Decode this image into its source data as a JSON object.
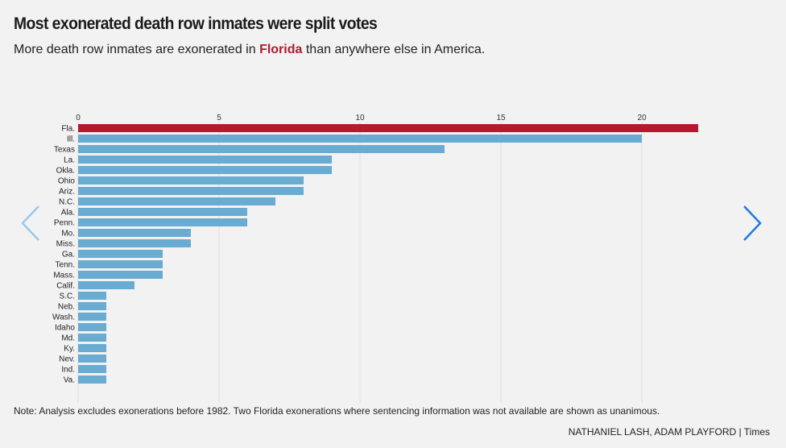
{
  "header": {
    "title": "Most exonerated death row inmates were split votes",
    "subtitle_before": "More death row inmates are exonerated in ",
    "subtitle_highlight": "Florida",
    "subtitle_after": " than anywhere else in America."
  },
  "footer": {
    "note": "Note: Analysis excludes exonerations before 1982. Two Florida exonerations where sentencing information was not available are shown as unanimous.",
    "credit": "NATHANIEL LASH, ADAM PLAYFORD | Times"
  },
  "navigation": {
    "prev_icon": "chevron-left-icon",
    "next_icon": "chevron-right-icon"
  },
  "colors": {
    "highlight": "#b5192f",
    "bar": "#6aabd2",
    "grid": "#dddddd",
    "prev_arrow": "#9cc7ee",
    "next_arrow": "#1f7ae0"
  },
  "chart_data": {
    "type": "bar",
    "orientation": "horizontal",
    "categories": [
      "Fla.",
      "Ill.",
      "Texas",
      "La.",
      "Okla.",
      "Ohio",
      "Ariz.",
      "N.C.",
      "Ala.",
      "Penn.",
      "Mo.",
      "Miss.",
      "Ga.",
      "Tenn.",
      "Mass.",
      "Calif.",
      "S.C.",
      "Neb.",
      "Wash.",
      "Idaho",
      "Md.",
      "Ky.",
      "Nev.",
      "Ind.",
      "Va."
    ],
    "values": [
      22,
      20,
      13,
      9,
      9,
      8,
      8,
      7,
      6,
      6,
      4,
      4,
      3,
      3,
      3,
      2,
      1,
      1,
      1,
      1,
      1,
      1,
      1,
      1,
      1
    ],
    "highlight_category": "Fla.",
    "xticks": [
      0,
      5,
      10,
      15,
      20
    ],
    "xlim": [
      0,
      22
    ],
    "grid": true,
    "axis_position": "top"
  }
}
